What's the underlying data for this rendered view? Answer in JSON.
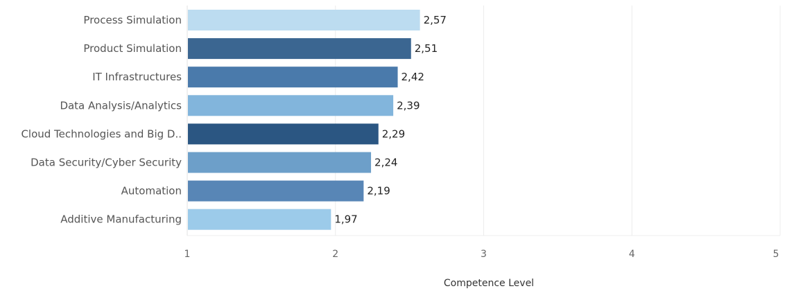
{
  "chart_data": {
    "type": "bar",
    "orientation": "horizontal",
    "categories": [
      "Process Simulation",
      "Product Simulation",
      "IT Infrastructures",
      "Data Analysis/Analytics",
      "Cloud Technologies and Big D..",
      "Data Security/Cyber Security",
      "Automation",
      "Additive Manufacturing"
    ],
    "values": [
      2.57,
      2.51,
      2.42,
      2.39,
      2.29,
      2.24,
      2.19,
      1.97
    ],
    "value_labels": [
      "2,57",
      "2,51",
      "2,42",
      "2,39",
      "2,29",
      "2,24",
      "2,19",
      "1,97"
    ],
    "bar_colors": [
      "#bcdcf0",
      "#3b6691",
      "#4a7aab",
      "#82b5dc",
      "#2b5682",
      "#6d9fc9",
      "#5886b6",
      "#9ccbea"
    ],
    "xlabel": "Competence Level",
    "ylabel": "",
    "xlim": [
      1,
      5
    ],
    "xticks": [
      1,
      2,
      3,
      4,
      5
    ],
    "xtick_labels": [
      "1",
      "2",
      "3",
      "4",
      "5"
    ],
    "grid": true,
    "legend": "none"
  }
}
